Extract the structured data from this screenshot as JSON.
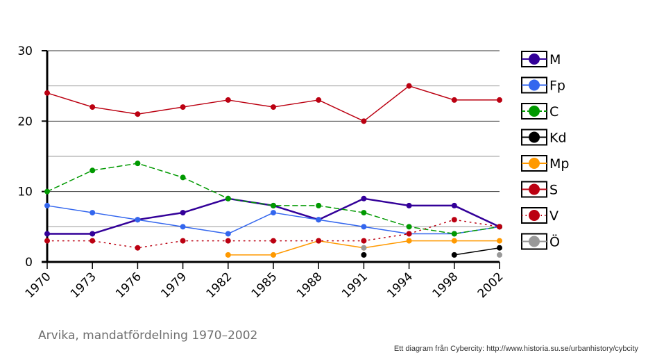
{
  "caption": "Arvika, mandatfördelning 1970–2002",
  "credit": "Ett diagram från Cybercity: http://www.historia.su.se/urbanhistory/cybcity",
  "chart_data": {
    "type": "line",
    "title": "Arvika, mandatfördelning 1970–2002",
    "xlabel": "",
    "ylabel": "",
    "categories": [
      "1970",
      "1973",
      "1976",
      "1979",
      "1982",
      "1985",
      "1988",
      "1991",
      "1994",
      "1998",
      "2002"
    ],
    "ylim": [
      0,
      30
    ],
    "yticks": [
      0,
      10,
      20,
      30
    ],
    "grid": true,
    "legend_position": "right",
    "series": [
      {
        "name": "M",
        "color": "#330099",
        "style": "solid",
        "width": 2.5,
        "values": [
          4,
          4,
          6,
          7,
          9,
          8,
          6,
          9,
          8,
          8,
          5
        ]
      },
      {
        "name": "Fp",
        "color": "#3366ee",
        "style": "solid",
        "width": 1.5,
        "values": [
          8,
          7,
          6,
          5,
          4,
          7,
          6,
          5,
          4,
          4,
          5
        ]
      },
      {
        "name": "C",
        "color": "#009900",
        "style": "dashed",
        "width": 1.5,
        "values": [
          10,
          13,
          14,
          12,
          9,
          8,
          8,
          7,
          5,
          4,
          5
        ]
      },
      {
        "name": "Kd",
        "color": "#000000",
        "style": "solid",
        "width": 1.5,
        "values": [
          null,
          null,
          null,
          null,
          null,
          null,
          null,
          1,
          null,
          1,
          2
        ]
      },
      {
        "name": "Mp",
        "color": "#ff9900",
        "style": "solid",
        "width": 1.5,
        "values": [
          null,
          null,
          null,
          null,
          1,
          1,
          3,
          2,
          3,
          3,
          3
        ]
      },
      {
        "name": "S",
        "color": "#bb0011",
        "style": "solid",
        "width": 1.5,
        "values": [
          24,
          22,
          21,
          22,
          23,
          22,
          23,
          20,
          25,
          23,
          23
        ]
      },
      {
        "name": "V",
        "color": "#bb0011",
        "style": "dotted",
        "width": 1.5,
        "values": [
          3,
          3,
          2,
          3,
          3,
          3,
          3,
          3,
          4,
          6,
          5
        ]
      },
      {
        "name": "Ö",
        "color": "#999999",
        "style": "solid",
        "width": 1.5,
        "values": [
          null,
          null,
          null,
          null,
          null,
          null,
          null,
          2,
          null,
          null,
          1
        ]
      }
    ]
  }
}
